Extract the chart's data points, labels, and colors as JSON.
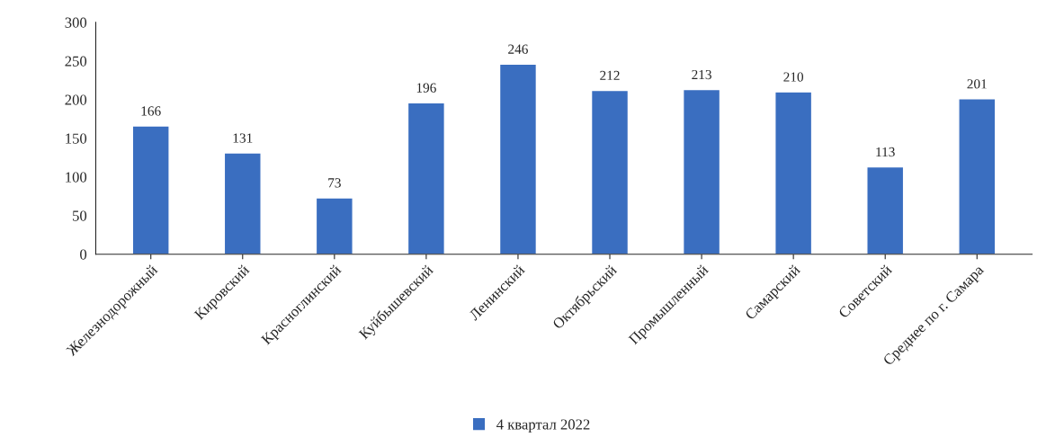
{
  "chart_data": {
    "type": "bar",
    "categories": [
      "Железнодорожный",
      "Кировский",
      "Красноглинский",
      "Куйбышевский",
      "Ленинский",
      "Октябрьский",
      "Промышленный",
      "Самарский",
      "Советский",
      "Среднее по г. Самара"
    ],
    "series": [
      {
        "name": "4 квартал 2022",
        "color": "#3a6ec0",
        "values": [
          166,
          131,
          73,
          196,
          246,
          212,
          213,
          210,
          113,
          201
        ]
      }
    ],
    "ylim": [
      0,
      300
    ],
    "yticks": [
      0,
      50,
      100,
      150,
      200,
      250,
      300
    ],
    "data_labels": true,
    "grid": false,
    "legend": "bottom"
  }
}
